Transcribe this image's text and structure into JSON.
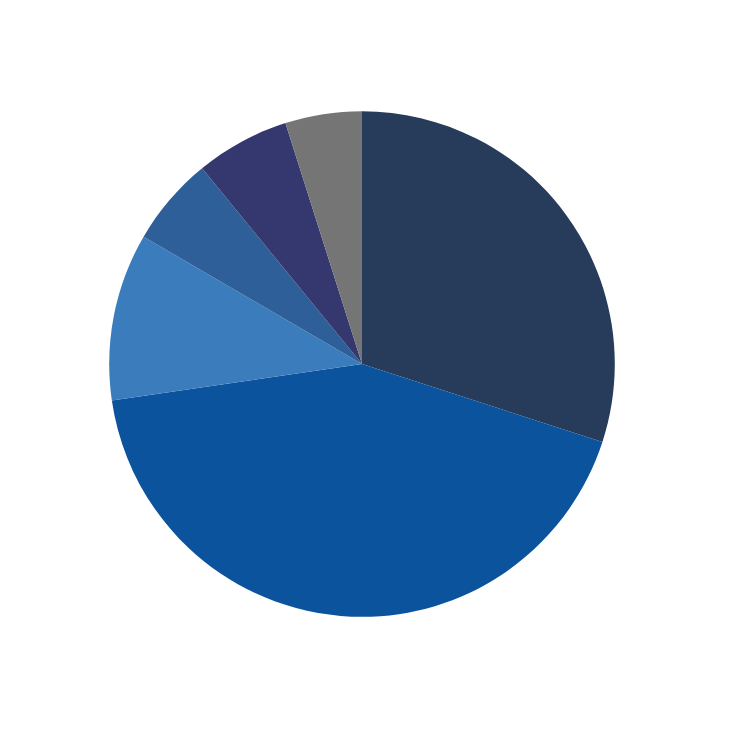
{
  "chart_data": {
    "type": "pie",
    "categories": [
      null,
      null,
      null,
      null,
      null,
      null
    ],
    "values": [
      30.0,
      42.7,
      10.7,
      5.7,
      6.0,
      4.9
    ],
    "colors": [
      "#263c5a",
      "#0b539c",
      "#3b7cbd",
      "#2f5f98",
      "#35386f",
      "#757575"
    ]
  }
}
